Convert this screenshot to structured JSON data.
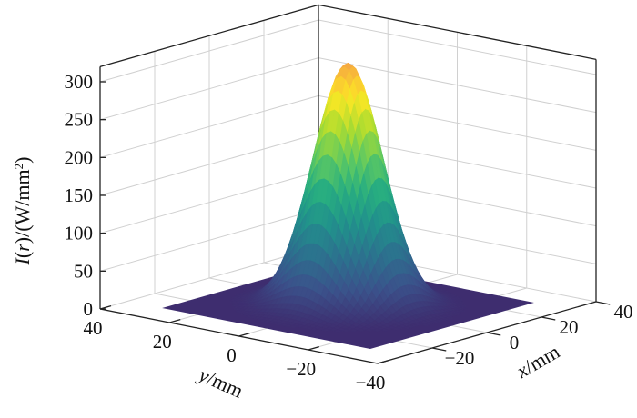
{
  "chart_data": {
    "type": "surface",
    "function": "gaussian",
    "peak_value": 320,
    "peak_center": {
      "x": 0,
      "y": 0
    },
    "beam_radius_mm": 8,
    "x": {
      "label_italic": "x",
      "label_rest": "/mm",
      "range": [
        -40,
        40
      ],
      "ticks": [
        -20,
        0,
        20,
        40
      ],
      "tick_labels": [
        "−20",
        "0",
        "20",
        "40"
      ]
    },
    "y": {
      "label_italic": "y",
      "label_rest": "/mm",
      "range": [
        -40,
        40
      ],
      "ticks": [
        40,
        20,
        0,
        -20,
        -40
      ],
      "tick_labels": [
        "40",
        "20",
        "0",
        "−20",
        "−40"
      ]
    },
    "z": {
      "label_italic": "I",
      "label_mid": "(",
      "label_var": "r",
      "label_rest": ")/(W/mm",
      "label_sup": "2",
      "label_end": ")",
      "range": [
        0,
        320
      ],
      "ticks": [
        0,
        50,
        100,
        150,
        200,
        250,
        300
      ],
      "tick_labels": [
        "0",
        "50",
        "100",
        "150",
        "200",
        "250",
        "300"
      ]
    },
    "colormap": [
      "#3e2d6f",
      "#3b528b",
      "#2c728e",
      "#21918c",
      "#28ae80",
      "#5ec962",
      "#addc30",
      "#fde725",
      "#f5a742"
    ],
    "grid": true
  }
}
